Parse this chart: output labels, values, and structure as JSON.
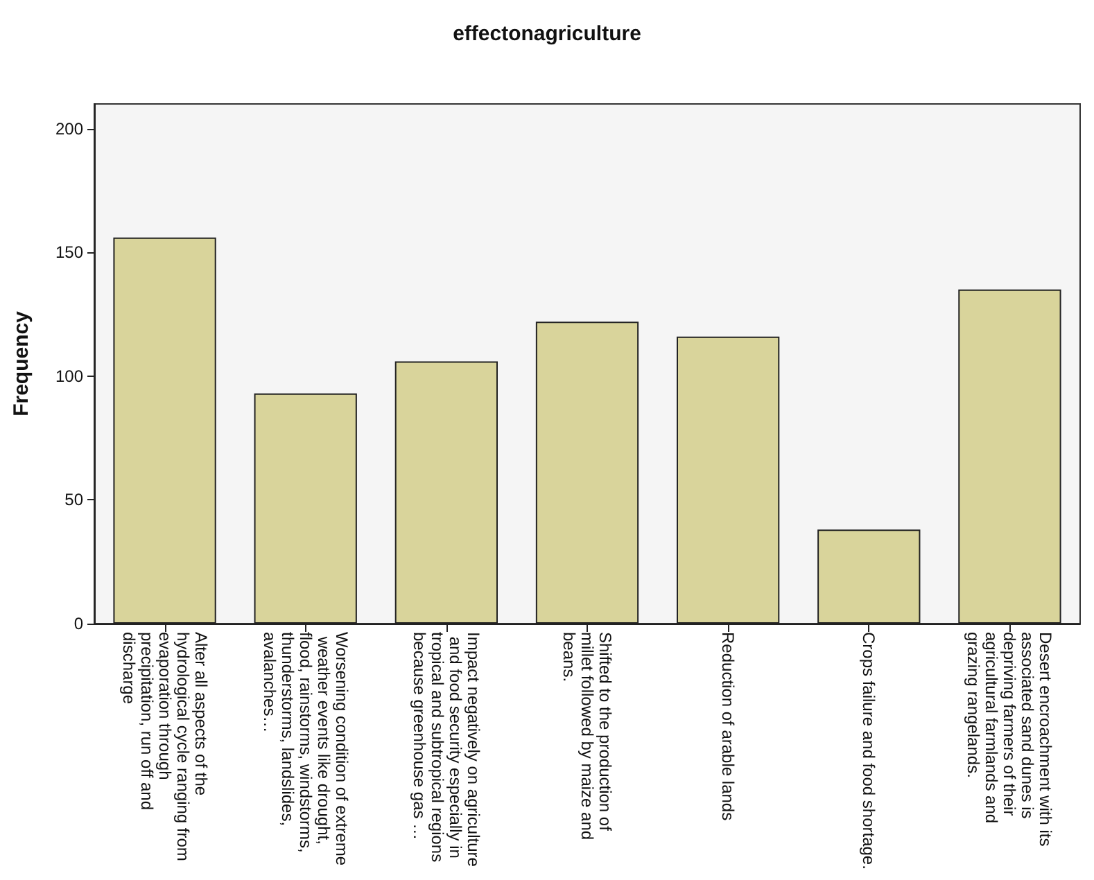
{
  "chart_data": {
    "type": "bar",
    "title": "effectonagriculture",
    "ylabel": "Frequency",
    "categories": [
      "Alter all aspects of the hydrological cycle ranging from evaporation through precipitation, run off and discharge",
      "Worsening condition of extreme weather events like drought, flood, rainstorms, windstorms, thunderstorms, landslides, avalanches…",
      "Impact negatively on agriculture and food security especially in tropical and subtropical regions because greenhouse gas …",
      "Shifted to the production of millet followed by maize and beans.",
      "Reduction of arable lands",
      "Crops failure and food shortage.",
      "Desert encroachment with its associated sand dunes is depriving farmers of their agricultural farmlands and grazing rangelands."
    ],
    "values": [
      156,
      93,
      106,
      122,
      116,
      38,
      135
    ],
    "color": "#d9d49b",
    "ylim": [
      0,
      210
    ],
    "yticks": [
      0,
      50,
      100,
      150,
      200
    ],
    "grid": false
  }
}
